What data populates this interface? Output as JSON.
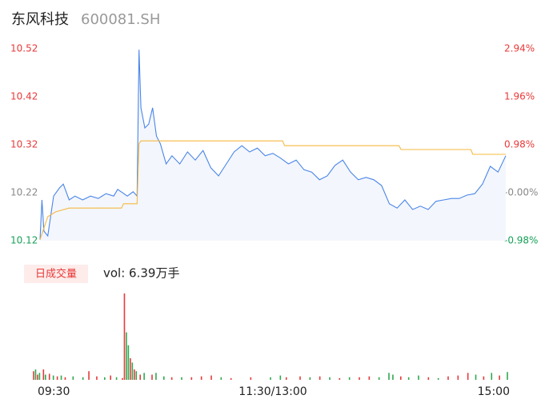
{
  "header": {
    "name": "东风科技",
    "code": "600081.SH"
  },
  "chart_data": [
    {
      "type": "line",
      "xlim": [
        0,
        240
      ],
      "ylim": [
        10.12,
        10.52
      ],
      "yticks": [
        10.52,
        10.42,
        10.32,
        10.22,
        10.12
      ],
      "y2lim": [
        -0.98,
        2.94
      ],
      "y2ticks": [
        {
          "value": 2.94,
          "label": "2.94%"
        },
        {
          "value": 1.96,
          "label": "1.96%"
        },
        {
          "value": 0.98,
          "label": "0.98%"
        },
        {
          "value": 0,
          "label": "-0.00%"
        },
        {
          "value": -0.98,
          "label": "-0.98%"
        }
      ],
      "series": [
        {
          "color": "#4a86e8",
          "x": [
            0,
            1,
            2,
            4,
            7,
            10,
            12,
            15,
            18,
            22,
            26,
            30,
            34,
            38,
            40,
            45,
            48,
            50,
            51,
            52,
            54,
            56,
            58,
            60,
            62,
            65,
            68,
            72,
            76,
            80,
            84,
            88,
            92,
            96,
            100,
            104,
            108,
            112,
            116,
            120,
            124,
            128,
            132,
            136,
            140,
            144,
            148,
            152,
            156,
            160,
            164,
            168,
            172,
            176,
            180,
            184,
            188,
            192,
            196,
            200,
            204,
            208,
            212,
            216,
            220,
            224,
            228,
            232,
            236,
            240
          ],
          "values": [
            10.122,
            10.205,
            10.14,
            10.13,
            10.213,
            10.23,
            10.238,
            10.205,
            10.213,
            10.205,
            10.213,
            10.208,
            10.218,
            10.213,
            10.227,
            10.213,
            10.222,
            10.213,
            10.518,
            10.397,
            10.355,
            10.363,
            10.397,
            10.338,
            10.322,
            10.28,
            10.297,
            10.28,
            10.305,
            10.288,
            10.308,
            10.272,
            10.255,
            10.28,
            10.305,
            10.318,
            10.305,
            10.313,
            10.297,
            10.302,
            10.292,
            10.28,
            10.288,
            10.268,
            10.263,
            10.247,
            10.255,
            10.277,
            10.288,
            10.263,
            10.247,
            10.252,
            10.247,
            10.235,
            10.197,
            10.188,
            10.205,
            10.185,
            10.192,
            10.185,
            10.202,
            10.205,
            10.208,
            10.208,
            10.215,
            10.218,
            10.238,
            10.275,
            10.263,
            10.297
          ]
        },
        {
          "color": "#f5b942",
          "x": [
            0,
            4,
            8,
            15,
            42,
            43,
            50,
            51,
            52,
            125,
            126,
            185,
            186,
            222,
            223,
            240
          ],
          "values": [
            10.122,
            10.17,
            10.18,
            10.188,
            10.188,
            10.197,
            10.197,
            10.322,
            10.328,
            10.328,
            10.318,
            10.318,
            10.31,
            10.31,
            10.3,
            10.3
          ]
        }
      ]
    },
    {
      "type": "bar",
      "label": "日成交量",
      "summary": "vol: 6.39万手",
      "xlim": [
        0,
        240
      ],
      "ylim": [
        0,
        100
      ],
      "xticks": [
        {
          "value": 0,
          "label": "09:30"
        },
        {
          "value": 120,
          "label": "11:30/13:00"
        },
        {
          "value": 240,
          "label": "15:00"
        }
      ],
      "x": [
        0,
        1,
        2,
        3,
        5,
        6,
        8,
        10,
        12,
        14,
        16,
        20,
        25,
        28,
        32,
        36,
        39,
        42,
        45,
        46,
        47,
        48,
        49,
        50,
        51,
        52,
        54,
        56,
        60,
        62,
        66,
        70,
        75,
        80,
        85,
        90,
        95,
        100,
        110,
        120,
        125,
        128,
        135,
        140,
        145,
        150,
        155,
        160,
        165,
        170,
        175,
        180,
        182,
        186,
        190,
        195,
        200,
        205,
        210,
        215,
        220,
        224,
        228,
        232,
        236,
        240
      ],
      "values": [
        10,
        12,
        6,
        8,
        12,
        6,
        7,
        5,
        4,
        5,
        3,
        4,
        3,
        10,
        4,
        3,
        5,
        3,
        2,
        100,
        55,
        40,
        25,
        20,
        12,
        10,
        6,
        8,
        6,
        8,
        4,
        3,
        3,
        3,
        4,
        5,
        3,
        2,
        3,
        3,
        5,
        3,
        4,
        3,
        4,
        3,
        2,
        3,
        3,
        4,
        3,
        8,
        6,
        4,
        3,
        5,
        3,
        2,
        4,
        5,
        8,
        6,
        4,
        8,
        5,
        9
      ],
      "colors": [
        "#e83a3a",
        "#2fa84f",
        "#e83a3a",
        "#2fa84f",
        "#e83a3a",
        "#2fa84f",
        "#e83a3a",
        "#2fa84f",
        "#e83a3a",
        "#2fa84f",
        "#e83a3a",
        "#2fa84f",
        "#2fa84f",
        "#e83a3a",
        "#e83a3a",
        "#2fa84f",
        "#e83a3a",
        "#2fa84f",
        "#e83a3a",
        "#e83a3a",
        "#2fa84f",
        "#2fa84f",
        "#e83a3a",
        "#2fa84f",
        "#e83a3a",
        "#2fa84f",
        "#e83a3a",
        "#2fa84f",
        "#e83a3a",
        "#2fa84f",
        "#2fa84f",
        "#e83a3a",
        "#2fa84f",
        "#e83a3a",
        "#e83a3a",
        "#e83a3a",
        "#2fa84f",
        "#e83a3a",
        "#e83a3a",
        "#2fa84f",
        "#2fa84f",
        "#e83a3a",
        "#e83a3a",
        "#2fa84f",
        "#e83a3a",
        "#2fa84f",
        "#e83a3a",
        "#2fa84f",
        "#e83a3a",
        "#e83a3a",
        "#2fa84f",
        "#2fa84f",
        "#2fa84f",
        "#e83a3a",
        "#2fa84f",
        "#2fa84f",
        "#e83a3a",
        "#2fa84f",
        "#e83a3a",
        "#e83a3a",
        "#e83a3a",
        "#2fa84f",
        "#e83a3a",
        "#2fa84f",
        "#e83a3a",
        "#2fa84f"
      ]
    }
  ]
}
